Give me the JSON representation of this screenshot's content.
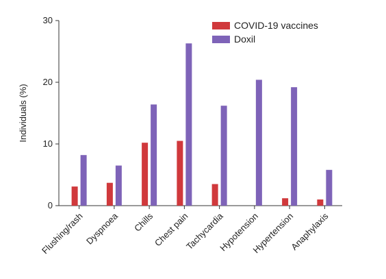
{
  "chart_data": {
    "type": "bar",
    "title": "",
    "xlabel": "",
    "ylabel": "Individuals (%)",
    "ylim": [
      0,
      30
    ],
    "yticks": [
      0,
      10,
      20,
      30
    ],
    "grid": false,
    "legend_position": "top-right",
    "categories": [
      "Flushing/rash",
      "Dyspnoea",
      "Chills",
      "Chest pain",
      "Tachycardia",
      "Hypotension",
      "Hypertension",
      "Anaphylaxis"
    ],
    "series": [
      {
        "name": "COVID-19 vaccines",
        "color": "#d0393c",
        "values": [
          3.1,
          3.7,
          10.2,
          10.5,
          3.5,
          0,
          1.2,
          1.0
        ]
      },
      {
        "name": "Doxil",
        "color": "#7e63b8",
        "values": [
          8.2,
          6.5,
          16.4,
          26.3,
          16.2,
          20.4,
          19.2,
          5.8
        ]
      }
    ]
  }
}
